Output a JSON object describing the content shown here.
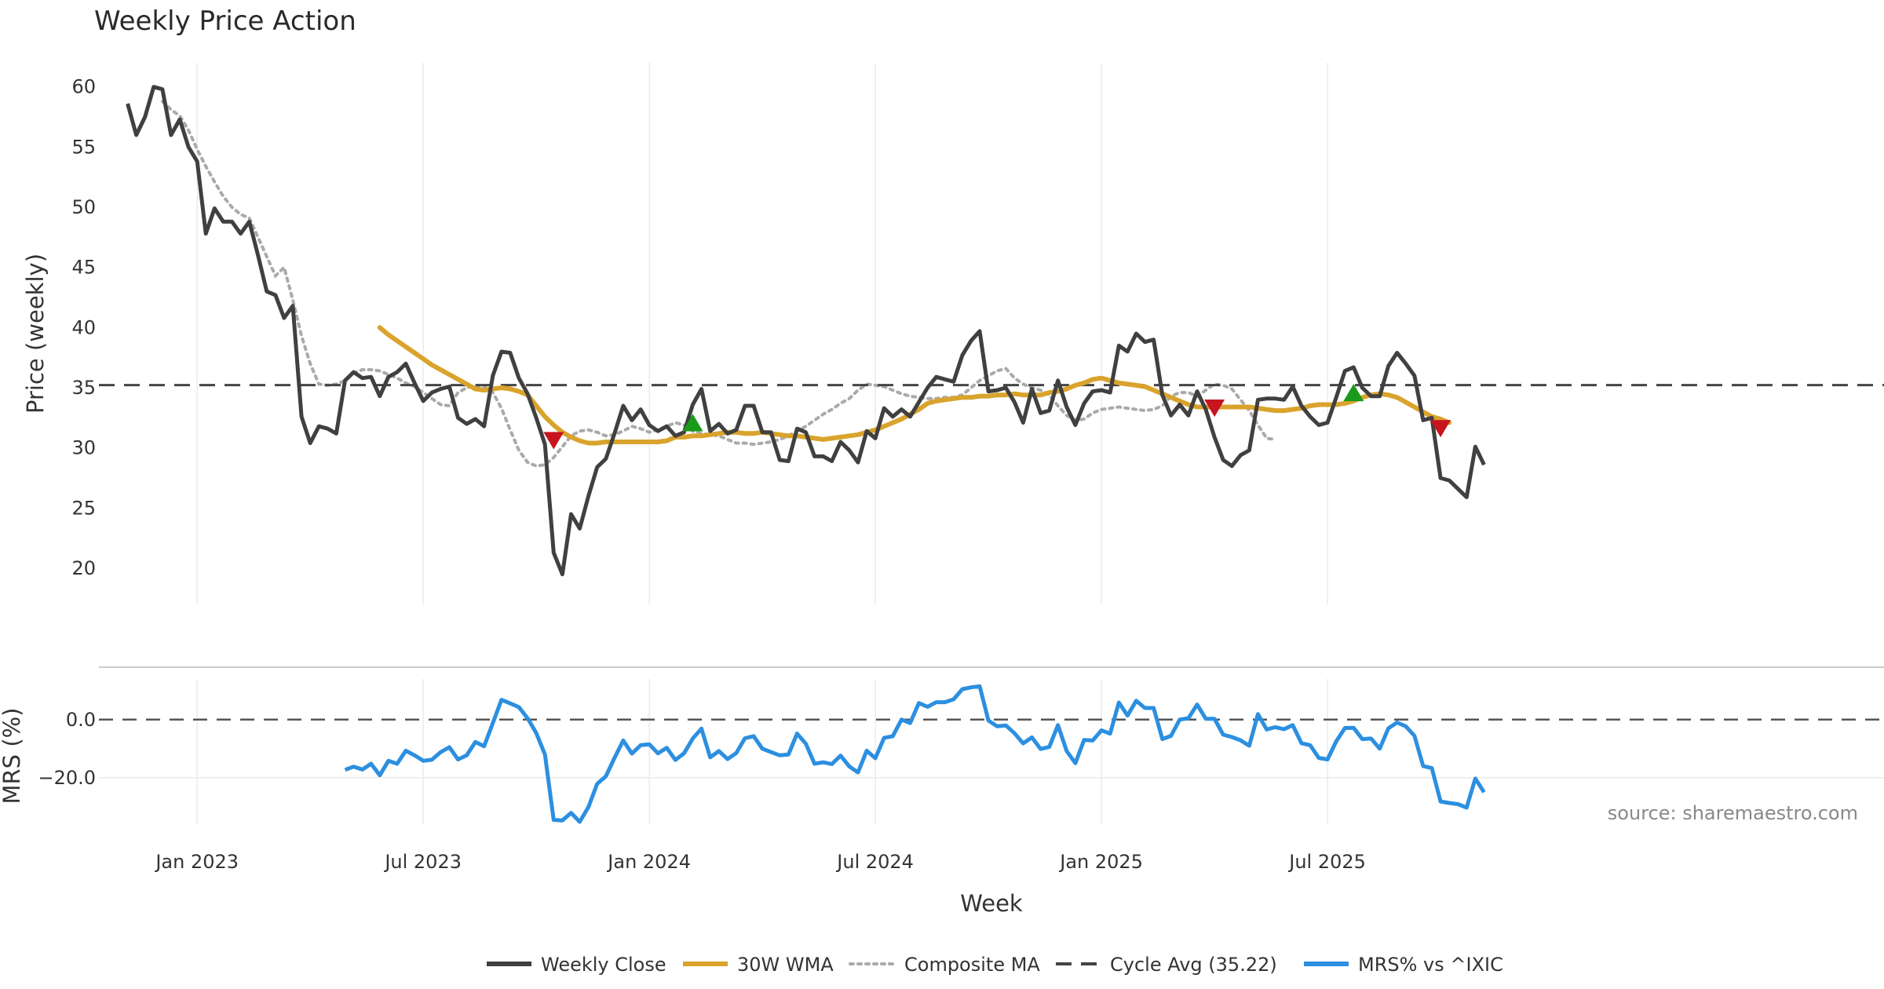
{
  "chart_data": [
    {
      "type": "line",
      "title": "Weekly Price Action",
      "xlabel": "Week",
      "ylabel": "Price (weekly)",
      "ylim": [
        17,
        62
      ],
      "yticks": [
        20,
        25,
        30,
        35,
        40,
        45,
        50,
        55,
        60
      ],
      "xlim": [
        -11.3,
        194
      ],
      "xticks": [
        {
          "label": "Jan 2023",
          "week": 0
        },
        {
          "label": "Jul 2023",
          "week": 26
        },
        {
          "label": "Jan 2024",
          "week": 52
        },
        {
          "label": "Jul 2024",
          "week": 78
        },
        {
          "label": "Jan 2025",
          "week": 104
        },
        {
          "label": "Jul 2025",
          "week": 130
        }
      ],
      "grid": true,
      "cycle_avg": 35.22,
      "series": [
        {
          "name": "Weekly Close",
          "color": "#404040",
          "start_week": -8,
          "values": [
            58.6,
            56.0,
            57.5,
            60.0,
            59.8,
            56.0,
            57.3,
            55.0,
            53.8,
            47.8,
            49.9,
            48.8,
            48.8,
            47.8,
            48.8,
            46.0,
            43.0,
            42.7,
            40.8,
            41.8,
            32.6,
            30.4,
            31.8,
            31.6,
            31.2,
            35.6,
            36.3,
            35.8,
            35.9,
            34.3,
            35.9,
            36.3,
            37.0,
            35.4,
            33.9,
            34.6,
            34.9,
            35.1,
            32.5,
            32.0,
            32.4,
            31.8,
            36.0,
            38.0,
            37.9,
            35.8,
            34.5,
            32.5,
            30.3,
            21.3,
            19.5,
            24.5,
            23.3,
            26.0,
            28.4,
            29.1,
            31.2,
            33.5,
            32.3,
            33.2,
            31.9,
            31.4,
            31.8,
            31.0,
            31.3,
            33.6,
            34.9,
            31.4,
            32.0,
            31.2,
            31.5,
            33.5,
            33.5,
            31.3,
            31.3,
            29.0,
            28.9,
            31.6,
            31.3,
            29.3,
            29.3,
            28.9,
            30.5,
            29.8,
            28.8,
            31.4,
            30.8,
            33.3,
            32.6,
            33.2,
            32.6,
            33.8,
            35.0,
            35.9,
            35.7,
            35.5,
            37.7,
            38.9,
            39.7,
            34.7,
            34.8,
            35.0,
            33.8,
            32.1,
            34.9,
            32.9,
            33.1,
            35.6,
            33.4,
            31.9,
            33.7,
            34.7,
            34.8,
            34.6,
            38.5,
            38.0,
            39.5,
            38.8,
            39.0,
            34.4,
            32.7,
            33.6,
            32.7,
            34.7,
            33.2,
            30.9,
            29.0,
            28.5,
            29.4,
            29.8,
            34.0,
            34.1,
            34.1,
            34.0,
            35.1,
            33.5,
            32.6,
            31.9,
            32.1,
            34.2,
            36.4,
            36.7,
            35.0,
            34.3,
            34.3,
            36.8,
            37.9,
            37.0,
            36.0,
            32.3,
            32.5,
            27.5,
            27.3,
            26.6,
            25.9,
            30.1,
            28.6
          ]
        },
        {
          "name": "30W WMA",
          "color": "#d9a32c",
          "start_week": 21,
          "values": [
            40.0,
            39.4,
            38.9,
            38.4,
            37.9,
            37.4,
            36.9,
            36.5,
            36.1,
            35.7,
            35.3,
            34.9,
            34.8,
            34.9,
            35.0,
            34.9,
            34.7,
            34.4,
            33.5,
            32.6,
            31.9,
            31.3,
            30.9,
            30.6,
            30.4,
            30.4,
            30.5,
            30.5,
            30.5,
            30.5,
            30.5,
            30.5,
            30.5,
            30.6,
            30.9,
            30.9,
            31.0,
            31.0,
            31.1,
            31.2,
            31.3,
            31.3,
            31.2,
            31.2,
            31.3,
            31.2,
            31.1,
            31.0,
            31.0,
            30.9,
            30.8,
            30.7,
            30.8,
            30.9,
            31.0,
            31.1,
            31.3,
            31.5,
            31.8,
            32.1,
            32.4,
            32.8,
            33.2,
            33.7,
            33.9,
            34.0,
            34.1,
            34.2,
            34.2,
            34.3,
            34.3,
            34.4,
            34.4,
            34.5,
            34.4,
            34.4,
            34.4,
            34.6,
            34.7,
            34.9,
            35.2,
            35.4,
            35.7,
            35.8,
            35.6,
            35.4,
            35.3,
            35.2,
            35.1,
            34.8,
            34.5,
            34.2,
            33.9,
            33.6,
            33.4,
            33.4,
            33.4,
            33.4,
            33.4,
            33.4,
            33.4,
            33.3,
            33.2,
            33.1,
            33.1,
            33.2,
            33.3,
            33.5,
            33.6,
            33.6,
            33.6,
            33.7,
            33.9,
            34.2,
            34.4,
            34.5,
            34.4,
            34.2,
            33.8,
            33.4,
            33.0,
            32.6,
            32.4,
            32.1
          ]
        },
        {
          "name": "Composite MA",
          "color": "#aaaaaa",
          "start_week": -4,
          "values": [
            58.8,
            58.1,
            57.6,
            56.4,
            54.8,
            53.4,
            52.1,
            50.9,
            50.0,
            49.4,
            49.1,
            47.5,
            45.9,
            44.3,
            45.0,
            42.3,
            39.3,
            37.0,
            35.3,
            35.2,
            35.3,
            35.6,
            36.2,
            36.5,
            36.5,
            36.4,
            36.1,
            35.8,
            35.4,
            35.1,
            34.6,
            34.1,
            33.6,
            33.5,
            34.6,
            35.0,
            35.2,
            35.1,
            34.6,
            33.3,
            31.5,
            29.8,
            28.8,
            28.5,
            28.6,
            29.2,
            30.1,
            31.0,
            31.4,
            31.5,
            31.3,
            31.0,
            31.1,
            31.4,
            31.8,
            31.6,
            31.3,
            31.5,
            31.8,
            32.1,
            31.9,
            31.4,
            31.2,
            31.1,
            31.0,
            30.7,
            30.4,
            30.4,
            30.3,
            30.4,
            30.5,
            30.7,
            31.0,
            31.4,
            31.8,
            32.3,
            32.8,
            33.2,
            33.7,
            34.1,
            34.8,
            35.3,
            35.2,
            35.1,
            34.8,
            34.5,
            34.3,
            34.2,
            34.1,
            34.1,
            34.2,
            34.2,
            34.4,
            35.0,
            35.6,
            36.0,
            36.4,
            36.6,
            35.8,
            35.3,
            35.0,
            34.8,
            34.4,
            33.5,
            32.7,
            32.3,
            32.4,
            32.9,
            33.2,
            33.3,
            33.4,
            33.3,
            33.2,
            33.1,
            33.2,
            33.5,
            34.3,
            34.6,
            34.6,
            34.3,
            34.8,
            35.3,
            35.2,
            34.9,
            34.0,
            33.1,
            31.9,
            30.8,
            30.7
          ]
        },
        {
          "name": "Cycle Avg (35.22)",
          "color": "#444444",
          "dashed": true
        }
      ],
      "markers": [
        {
          "type": "sell",
          "week": 41,
          "value": 30.6,
          "color": "#c8141e"
        },
        {
          "type": "buy",
          "week": 57,
          "value": 32.1,
          "color": "#1a9a1a"
        },
        {
          "type": "sell",
          "week": 117,
          "value": 33.3,
          "color": "#c8141e"
        },
        {
          "type": "buy",
          "week": 133,
          "value": 34.6,
          "color": "#1a9a1a"
        },
        {
          "type": "sell",
          "week": 143,
          "value": 31.6,
          "color": "#c8141e"
        }
      ]
    },
    {
      "type": "line",
      "xlabel": "Week",
      "ylabel": "MRS (%)",
      "ylim": [
        -36,
        14
      ],
      "yticks": [
        {
          "value": 0,
          "label": "0.0"
        },
        {
          "value": -20,
          "label": "−20.0"
        }
      ],
      "xlim": [
        -11.3,
        194
      ],
      "series": [
        {
          "name": "MRS% vs ^IXIC",
          "color": "#2c8fe0",
          "start_week": 17,
          "values": [
            -17.3,
            -16.2,
            -17.2,
            -15.2,
            -19.2,
            -14.2,
            -15.2,
            -10.7,
            -12.3,
            -14.2,
            -13.8,
            -11.2,
            -9.5,
            -13.7,
            -12.3,
            -7.7,
            -9.2,
            -1.2,
            6.8,
            5.6,
            4.3,
            0.5,
            -4.6,
            -12.0,
            -34.5,
            -34.7,
            -32.1,
            -35.2,
            -30.1,
            -22.1,
            -19.5,
            -13.2,
            -7.2,
            -11.7,
            -8.8,
            -8.5,
            -11.6,
            -9.7,
            -13.9,
            -11.6,
            -6.5,
            -3.1,
            -13.0,
            -10.8,
            -13.6,
            -11.5,
            -6.4,
            -5.7,
            -10.0,
            -11.2,
            -12.3,
            -12.0,
            -4.8,
            -8.3,
            -15.2,
            -14.7,
            -15.3,
            -12.4,
            -16.1,
            -18.2,
            -10.7,
            -13.3,
            -6.3,
            -5.7,
            0.0,
            -1.2,
            5.7,
            4.4,
            6.0,
            6.0,
            7.0,
            10.5,
            11.1,
            11.5,
            -0.3,
            -2.3,
            -2.0,
            -4.7,
            -8.2,
            -6.1,
            -10.1,
            -9.4,
            -1.9,
            -10.8,
            -15.0,
            -7.0,
            -7.2,
            -3.7,
            -4.8,
            5.9,
            1.4,
            6.5,
            4.0,
            4.0,
            -6.7,
            -5.6,
            0.0,
            0.5,
            5.2,
            0.3,
            0.3,
            -5.2,
            -6.0,
            -7.1,
            -9.0,
            1.9,
            -3.4,
            -2.6,
            -3.3,
            -1.9,
            -8.1,
            -8.8,
            -13.2,
            -13.7,
            -7.5,
            -2.9,
            -2.8,
            -6.7,
            -6.5,
            -10.0,
            -3.0,
            -1.0,
            -2.3,
            -5.6,
            -16.0,
            -16.7,
            -28.2,
            -28.7,
            -29.1,
            -30.3,
            -20.3,
            -25.0
          ]
        },
        {
          "name": "zero-line",
          "value": 0,
          "dashed": true
        }
      ]
    }
  ],
  "legend": {
    "placement": "bottom-center",
    "items": [
      {
        "label": "Weekly Close",
        "color": "#404040",
        "style": "solid"
      },
      {
        "label": "30W WMA",
        "color": "#d9a32c",
        "style": "solid"
      },
      {
        "label": "Composite MA",
        "color": "#aaaaaa",
        "style": "dotted"
      },
      {
        "label": "Cycle Avg (35.22)",
        "color": "#444444",
        "style": "dashed"
      },
      {
        "label": "MRS% vs ^IXIC",
        "color": "#2c8fe0",
        "style": "solid"
      }
    ]
  },
  "source_text": "source: sharemaestro.com"
}
